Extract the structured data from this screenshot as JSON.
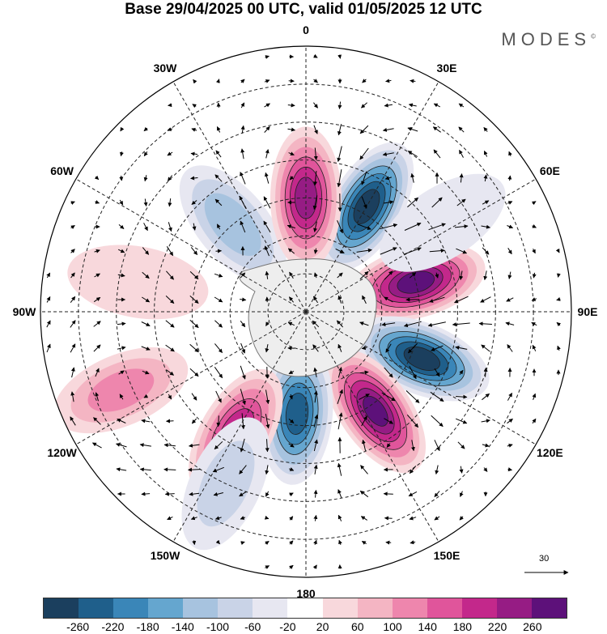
{
  "title": "Base 29/04/2025 00 UTC, valid 01/05/2025 12 UTC",
  "brand": "MODES",
  "brand_mark": "©",
  "longitude_labels": [
    "0",
    "30E",
    "60E",
    "90E",
    "120E",
    "150E",
    "180",
    "150W",
    "120W",
    "90W",
    "60W",
    "30W"
  ],
  "reference_vector_label": "30",
  "colorbar": {
    "tick_labels": [
      "-260",
      "-220",
      "-180",
      "-140",
      "-100",
      "-60",
      "-20",
      "20",
      "60",
      "100",
      "140",
      "180",
      "220",
      "260"
    ],
    "colors": [
      "#1b3f5e",
      "#1f5f8b",
      "#3a86b8",
      "#65a6cf",
      "#a7c3df",
      "#c9d3e7",
      "#e7e7f1",
      "#ffffff",
      "#f8d8dc",
      "#f4b5c3",
      "#ee86ad",
      "#e0559b",
      "#c3288b",
      "#961c84",
      "#5d117a"
    ]
  },
  "anomalies": [
    {
      "lat": -58,
      "lon": 30,
      "value": -270
    },
    {
      "lat": -60,
      "lon": 75,
      "value": 270
    },
    {
      "lat": -57,
      "lon": 112,
      "value": -270
    },
    {
      "lat": -58,
      "lon": 145,
      "value": 260
    },
    {
      "lat": -63,
      "lon": -175,
      "value": -230
    },
    {
      "lat": -53,
      "lon": -150,
      "value": 210
    },
    {
      "lat": -37,
      "lon": -113,
      "value": 120
    },
    {
      "lat": -60,
      "lon": -40,
      "value": -130
    },
    {
      "lat": -60,
      "lon": 0,
      "value": 230
    },
    {
      "lat": -47,
      "lon": 57,
      "value": -40
    },
    {
      "lat": -45,
      "lon": -80,
      "value": 40
    },
    {
      "lat": -40,
      "lon": -155,
      "value": -80
    }
  ]
}
